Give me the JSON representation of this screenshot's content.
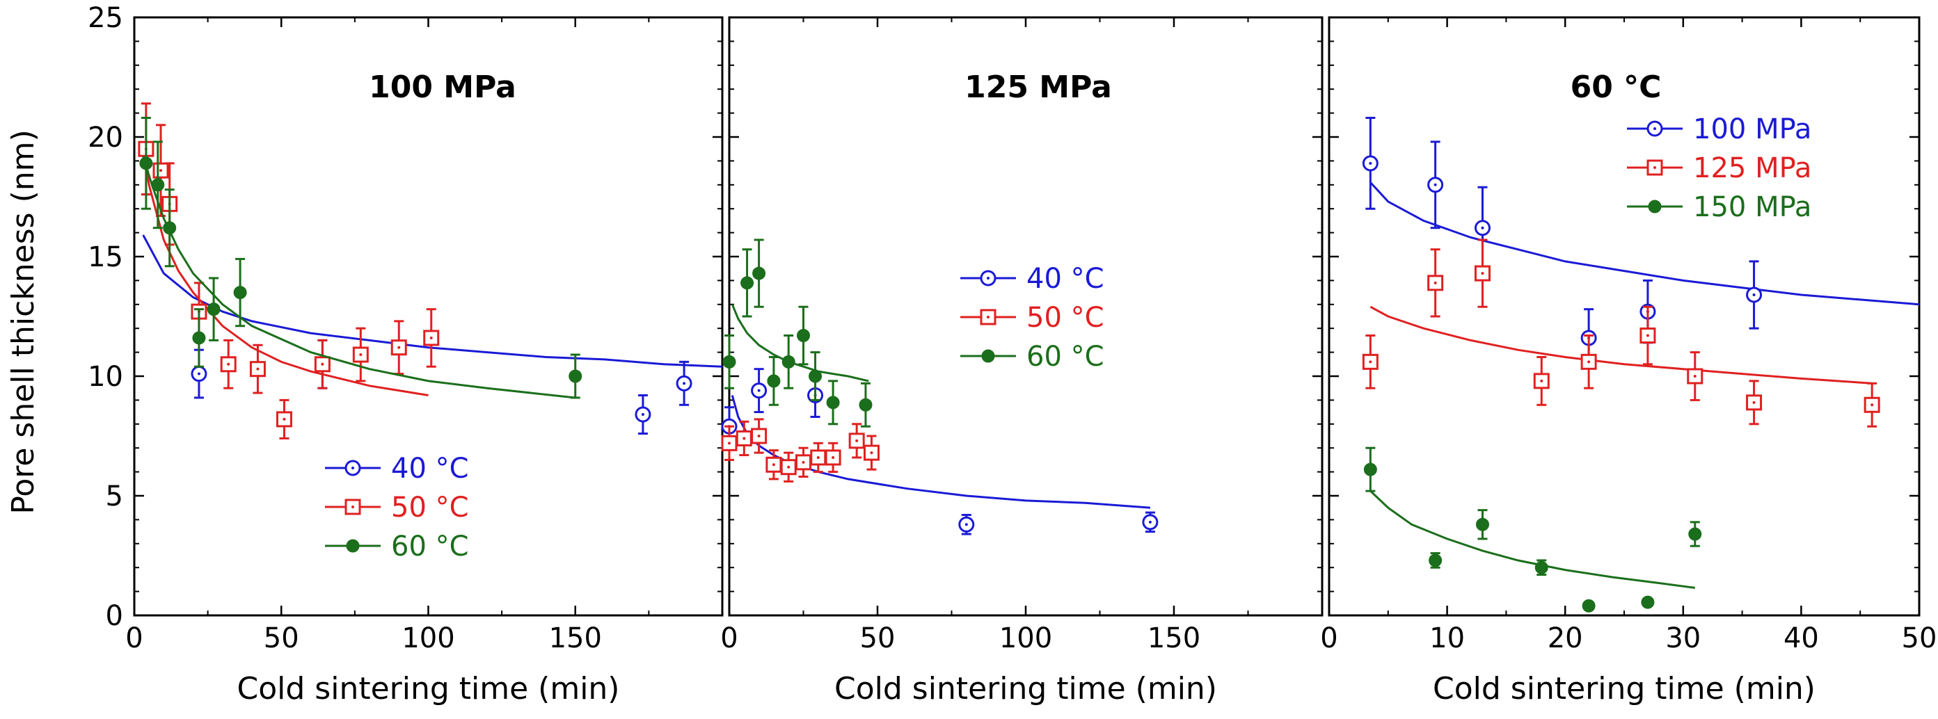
{
  "colors": {
    "blue": "#1a1ad6",
    "red": "#e02020",
    "green": "#1b6e1b"
  },
  "ylabel": "Pore shell thickness (nm)",
  "chart_data": [
    {
      "type": "scatter",
      "title": "100 MPa",
      "xlabel": "Cold sintering time (min)",
      "ylabel": "Pore shell thickness (nm)",
      "xlim": [
        0,
        200
      ],
      "ylim": [
        0,
        25
      ],
      "xticks": [
        0,
        50,
        100,
        150
      ],
      "yticks": [
        0,
        5,
        10,
        15,
        20,
        25
      ],
      "legend_position": "bottom-center",
      "series": [
        {
          "name": "40 °C",
          "color": "blue",
          "marker": "circle-open",
          "x": [
            22,
            64,
            173,
            187
          ],
          "y": [
            10.1,
            10.5,
            8.4,
            9.7
          ],
          "err": [
            1.0,
            1.0,
            0.8,
            0.9
          ],
          "fit": {
            "x": [
              3,
              10,
              20,
              30,
              40,
              60,
              80,
              100,
              120,
              140,
              160,
              180,
              200
            ],
            "y": [
              15.9,
              14.3,
              13.3,
              12.7,
              12.3,
              11.8,
              11.5,
              11.2,
              11.0,
              10.8,
              10.7,
              10.5,
              10.4
            ]
          }
        },
        {
          "name": "50 °C",
          "color": "red",
          "marker": "square-open",
          "x": [
            4,
            9,
            12,
            22,
            32,
            42,
            51,
            64,
            77,
            90,
            101
          ],
          "y": [
            19.5,
            18.6,
            17.2,
            12.7,
            10.5,
            10.3,
            8.2,
            10.5,
            10.9,
            11.2,
            11.6
          ],
          "err": [
            1.9,
            1.9,
            1.7,
            1.2,
            1.0,
            1.0,
            0.8,
            1.0,
            1.1,
            1.1,
            1.2
          ],
          "fit": {
            "x": [
              3,
              5,
              10,
              15,
              20,
              30,
              40,
              50,
              60,
              70,
              80,
              90,
              100
            ],
            "y": [
              19.5,
              18.0,
              15.7,
              14.4,
              13.5,
              12.1,
              11.2,
              10.6,
              10.2,
              9.9,
              9.6,
              9.4,
              9.2
            ]
          }
        },
        {
          "name": "60 °C",
          "color": "green",
          "marker": "circle-filled",
          "x": [
            4,
            8,
            12,
            22,
            27,
            36,
            150
          ],
          "y": [
            18.9,
            18.0,
            16.2,
            11.6,
            12.8,
            13.5,
            10.0
          ],
          "err": [
            1.9,
            1.8,
            1.6,
            1.2,
            1.3,
            1.4,
            0.9
          ],
          "fit": {
            "x": [
              3,
              6,
              10,
              15,
              20,
              30,
              40,
              60,
              80,
              100,
              120,
              150
            ],
            "y": [
              19.2,
              18.0,
              16.6,
              15.3,
              14.3,
              13.0,
              12.1,
              11.0,
              10.3,
              9.8,
              9.5,
              9.1
            ]
          }
        }
      ]
    },
    {
      "type": "scatter",
      "title": "125 MPa",
      "xlabel": "Cold sintering time (min)",
      "xlim": [
        0,
        200
      ],
      "ylim": [
        0,
        25
      ],
      "xticks": [
        0,
        50,
        100,
        150
      ],
      "legend_position": "upper-right",
      "series": [
        {
          "name": "40 °C",
          "color": "blue",
          "marker": "circle-open",
          "x": [
            0,
            10,
            29,
            80,
            142
          ],
          "y": [
            7.9,
            9.4,
            9.2,
            3.8,
            3.9
          ],
          "err": [
            0.8,
            0.9,
            0.9,
            0.4,
            0.4
          ],
          "fit": {
            "x": [
              1,
              3,
              6,
              10,
              15,
              20,
              30,
              40,
              60,
              80,
              100,
              120,
              142
            ],
            "y": [
              9.2,
              8.3,
              7.6,
              7.1,
              6.7,
              6.4,
              6.0,
              5.7,
              5.3,
              5.0,
              4.8,
              4.7,
              4.5
            ]
          }
        },
        {
          "name": "50 °C",
          "color": "red",
          "marker": "square-open",
          "x": [
            0,
            5,
            10,
            15,
            20,
            25,
            30,
            35,
            43,
            48
          ],
          "y": [
            7.2,
            7.4,
            7.5,
            6.3,
            6.2,
            6.4,
            6.6,
            6.6,
            7.3,
            6.8
          ],
          "err": [
            0.7,
            0.7,
            0.7,
            0.6,
            0.6,
            0.6,
            0.6,
            0.6,
            0.7,
            0.7
          ]
        },
        {
          "name": "60 °C",
          "color": "green",
          "marker": "circle-filled",
          "x": [
            0,
            6,
            10,
            15,
            20,
            25,
            29,
            35,
            46
          ],
          "y": [
            10.6,
            13.9,
            14.3,
            9.8,
            10.6,
            11.7,
            10.0,
            8.9,
            8.8
          ],
          "err": [
            1.1,
            1.4,
            1.4,
            1.0,
            1.1,
            1.2,
            1.0,
            0.9,
            0.9
          ],
          "fit": {
            "x": [
              1,
              3,
              6,
              10,
              15,
              20,
              25,
              30,
              35,
              40,
              47
            ],
            "y": [
              13.0,
              12.4,
              11.8,
              11.3,
              10.9,
              10.6,
              10.4,
              10.2,
              10.1,
              10.0,
              9.8
            ]
          }
        }
      ]
    },
    {
      "type": "scatter",
      "title": "60 °C",
      "xlabel": "Cold sintering time (min)",
      "xlim": [
        0,
        50
      ],
      "ylim": [
        0,
        25
      ],
      "xticks": [
        0,
        10,
        20,
        30,
        40,
        50
      ],
      "legend_position": "upper-right",
      "series": [
        {
          "name": "100 MPa",
          "color": "blue",
          "marker": "circle-open",
          "x": [
            3.5,
            9,
            13,
            22,
            27,
            36
          ],
          "y": [
            18.9,
            18.0,
            16.2,
            11.6,
            12.7,
            13.4
          ],
          "err": [
            1.9,
            1.8,
            1.7,
            1.2,
            1.3,
            1.4
          ],
          "fit": {
            "x": [
              3.5,
              5,
              8,
              12,
              16,
              20,
              25,
              30,
              35,
              40,
              45,
              50
            ],
            "y": [
              18.1,
              17.3,
              16.5,
              15.8,
              15.3,
              14.8,
              14.4,
              14.0,
              13.7,
              13.4,
              13.2,
              13.0
            ]
          }
        },
        {
          "name": "125 MPa",
          "color": "red",
          "marker": "square-open",
          "x": [
            3.5,
            9,
            13,
            18,
            22,
            27,
            31,
            36,
            46
          ],
          "y": [
            10.6,
            13.9,
            14.3,
            9.8,
            10.6,
            11.7,
            10.0,
            8.9,
            8.8
          ],
          "err": [
            1.1,
            1.4,
            1.4,
            1.0,
            1.1,
            1.2,
            1.0,
            0.9,
            0.9
          ],
          "fit": {
            "x": [
              3.5,
              5,
              8,
              12,
              16,
              20,
              25,
              30,
              35,
              40,
              46
            ],
            "y": [
              12.9,
              12.5,
              12.0,
              11.5,
              11.1,
              10.8,
              10.5,
              10.3,
              10.1,
              9.9,
              9.7
            ]
          }
        },
        {
          "name": "150 MPa",
          "color": "green",
          "marker": "circle-filled",
          "x": [
            3.5,
            9,
            13,
            18,
            22,
            27,
            31
          ],
          "y": [
            6.1,
            2.3,
            3.8,
            2.0,
            0.4,
            0.55,
            3.4
          ],
          "err": [
            0.9,
            0.3,
            0.6,
            0.3,
            0,
            0,
            0.5
          ],
          "fit": {
            "x": [
              3.5,
              5,
              7,
              10,
              13,
              16,
              20,
              24,
              28,
              31
            ],
            "y": [
              5.2,
              4.5,
              3.8,
              3.2,
              2.7,
              2.3,
              1.9,
              1.6,
              1.35,
              1.15
            ]
          }
        }
      ]
    }
  ]
}
